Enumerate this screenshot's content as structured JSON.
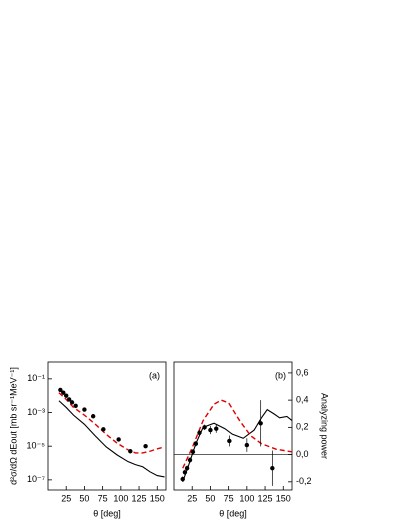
{
  "chart_data": [
    {
      "type": "line",
      "panel_label": "(a)",
      "xlabel": "θ [deg]",
      "ylabel": "d²σ/dΩ dEout [mb sr⁻¹MeV⁻¹]",
      "log_y": true,
      "y_axis_side": "left",
      "xlim": [
        0,
        162
      ],
      "xticks": [
        25,
        50,
        75,
        100,
        125,
        150
      ],
      "ylim": [
        2.5e-08,
        1
      ],
      "yticks": [
        {
          "value": 1e-07,
          "label": "10⁻⁷"
        },
        {
          "value": 1e-05,
          "label": "10⁻⁵"
        },
        {
          "value": 0.001,
          "label": "10⁻³"
        },
        {
          "value": 0.1,
          "label": "10⁻¹"
        }
      ],
      "series": [
        {
          "style": "solid",
          "color": "#000000",
          "x": [
            15,
            25,
            35,
            50,
            65,
            80,
            95,
            110,
            120,
            130,
            140,
            150,
            160
          ],
          "values": [
            0.005,
            0.002,
            0.0007,
            0.0002,
            4e-05,
            9e-06,
            3e-06,
            1.2e-06,
            8e-07,
            6e-07,
            3e-07,
            1.8e-07,
            1.5e-07
          ]
        },
        {
          "style": "dashed",
          "color": "#e00000",
          "x": [
            15,
            25,
            35,
            50,
            65,
            80,
            95,
            110,
            120,
            130,
            140,
            150,
            160
          ],
          "values": [
            0.015,
            0.006,
            0.002,
            0.0007,
            0.0002,
            5e-05,
            1.5e-05,
            6e-06,
            4e-06,
            4e-06,
            5e-06,
            7e-06,
            9e-06
          ]
        },
        {
          "style": "points",
          "color": "#000000",
          "x": [
            17,
            21,
            25,
            29,
            33,
            38,
            50,
            62,
            76,
            97,
            113,
            134
          ],
          "values": [
            0.022,
            0.015,
            0.01,
            0.006,
            0.004,
            0.0025,
            0.0015,
            0.0006,
            0.0001,
            2.5e-05,
            5e-06,
            1e-05
          ]
        }
      ]
    },
    {
      "type": "line",
      "panel_label": "(b)",
      "xlabel": "θ [deg]",
      "ylabel": "Analyzing power",
      "log_y": false,
      "y_axis_side": "right",
      "zero_line": true,
      "xlim": [
        0,
        162
      ],
      "xticks": [
        25,
        50,
        75,
        100,
        125,
        150
      ],
      "ylim": [
        -0.26,
        0.68
      ],
      "yticks": [
        {
          "value": -0.2,
          "label": "-0,2"
        },
        {
          "value": 0,
          "label": "0,0"
        },
        {
          "value": 0.2,
          "label": "0,2"
        },
        {
          "value": 0.4,
          "label": "0,4"
        },
        {
          "value": 0.6,
          "label": "0,6"
        }
      ],
      "series": [
        {
          "style": "solid",
          "color": "#000000",
          "x": [
            12,
            20,
            30,
            40,
            55,
            70,
            80,
            95,
            110,
            120,
            128,
            137,
            145,
            155,
            162
          ],
          "values": [
            -0.2,
            -0.08,
            0.08,
            0.2,
            0.23,
            0.19,
            0.15,
            0.12,
            0.18,
            0.27,
            0.33,
            0.3,
            0.27,
            0.28,
            0.25
          ]
        },
        {
          "style": "dashed",
          "color": "#e00000",
          "x": [
            12,
            25,
            40,
            55,
            65,
            75,
            90,
            105,
            120,
            140,
            162
          ],
          "values": [
            -0.1,
            0.05,
            0.25,
            0.37,
            0.4,
            0.38,
            0.25,
            0.14,
            0.08,
            0.04,
            0.02
          ]
        },
        {
          "style": "points",
          "color": "#000000",
          "x": [
            12,
            15,
            18,
            22,
            26,
            30,
            35,
            42,
            50,
            58,
            76,
            100,
            119,
            135
          ],
          "values": [
            -0.18,
            -0.13,
            -0.1,
            -0.04,
            0.02,
            0.08,
            0.16,
            0.2,
            0.18,
            0.19,
            0.1,
            0.07,
            0.23,
            -0.1
          ],
          "errors": [
            0.02,
            0.02,
            0.02,
            0.02,
            0.02,
            0.02,
            0.02,
            0.02,
            0.03,
            0.03,
            0.04,
            0.05,
            0.17,
            0.13
          ]
        }
      ]
    }
  ]
}
